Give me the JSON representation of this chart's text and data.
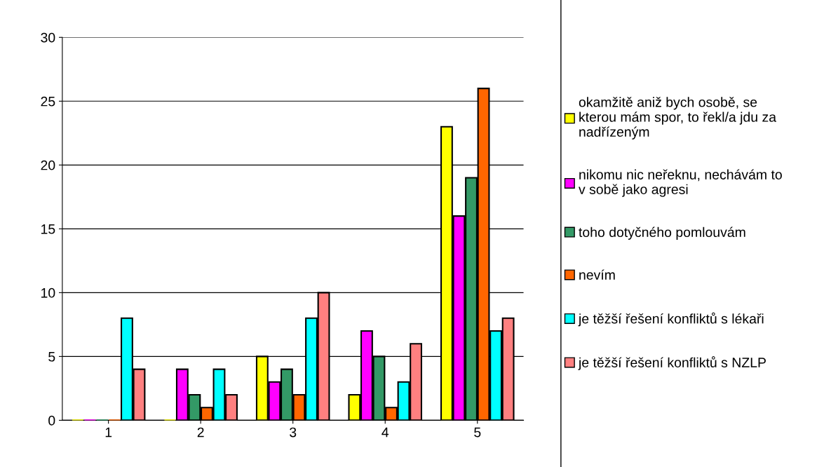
{
  "chart_data": {
    "type": "bar",
    "categories": [
      "1",
      "2",
      "3",
      "4",
      "5"
    ],
    "series": [
      {
        "name": "okamžitě aniž bych osobě, se\nkterou mám spor, to řekl/a jdu za\nnadřízeným",
        "color": "#ffff00",
        "values": [
          0,
          0,
          5,
          2,
          23
        ]
      },
      {
        "name": "nikomu nic neřeknu, nechávám to\nv sobě jako agresi",
        "color": "#ff00ff",
        "values": [
          0,
          4,
          3,
          7,
          16
        ]
      },
      {
        "name": "toho dotyčného pomlouvám",
        "color": "#339966",
        "values": [
          0,
          2,
          4,
          5,
          19
        ]
      },
      {
        "name": "nevím",
        "color": "#ff6600",
        "values": [
          0,
          1,
          2,
          1,
          26
        ]
      },
      {
        "name": "je těžší řešení konfliktů s lékaři",
        "color": "#00ffff",
        "values": [
          8,
          4,
          8,
          3,
          7
        ]
      },
      {
        "name": "je těžší řešení konfliktů s NZLP",
        "color": "#ff8080",
        "values": [
          4,
          2,
          10,
          6,
          8
        ]
      }
    ],
    "ylim": [
      0,
      30
    ],
    "yticks": [
      0,
      5,
      10,
      15,
      20,
      25,
      30
    ],
    "grid": "y",
    "legend": "right"
  }
}
